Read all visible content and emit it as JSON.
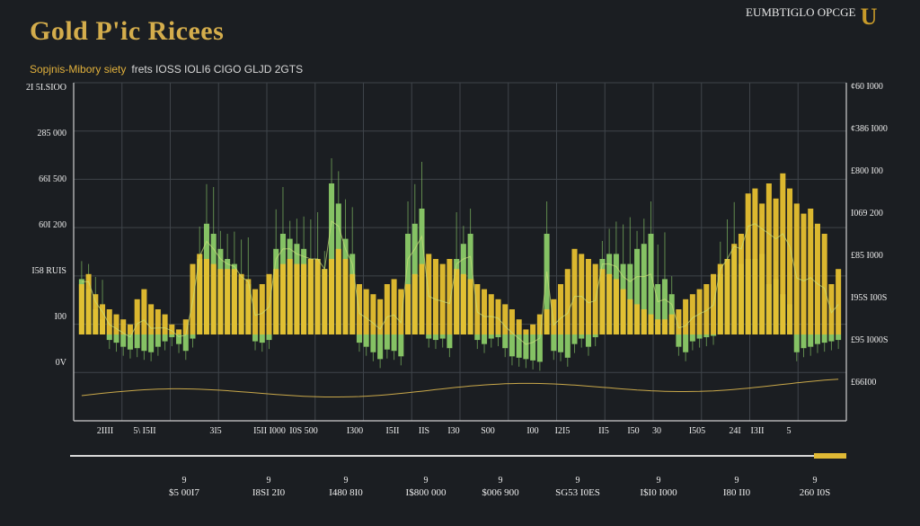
{
  "header": {
    "title": "Gold P'ic Ricees",
    "subtitle_gold": "Sopjnis-Mibory siety",
    "subtitle_rest": "frets IOSS  IOLI6 CIGO GLJD 2GTS",
    "top_right": "EUMBTIGLO OPCGE"
  },
  "colors": {
    "background": "#1b1e22",
    "green": "#8ed06a",
    "yellow": "#e6c030",
    "gold_text": "#d4ad4c",
    "grid": "#3f444a"
  },
  "chart_data": {
    "type": "bar",
    "left_ticks": [
      "2I 5I.SIOO",
      "285 000",
      "66I 500",
      "60I 200",
      "I58 RUIS",
      "I00",
      "0V"
    ],
    "right_ticks": [
      "¢60 I000",
      "¢386 I000",
      "£800 I00",
      "I069 200",
      "£85 I000",
      "I95S I00S",
      "£95 I000S",
      "£66I00"
    ],
    "x_ticks": [
      "2IIII",
      "5\\ I5II",
      "3I5",
      "I5II I000",
      "I0S 500",
      "I300",
      "I5II",
      "IIS",
      "I30",
      "S00",
      "I00",
      "I2I5",
      "II5",
      "I50",
      "30",
      "I505",
      "24I",
      "I3II",
      "5"
    ],
    "bottom_ticks_top": [
      "9",
      "9",
      "9",
      "9",
      "9",
      "9",
      "9",
      "9",
      "9"
    ],
    "bottom_ticks": [
      "$5 00I7",
      "I8SI 2I0",
      "I480 8I0",
      "I$800 000",
      "$006 900",
      "SG53 I0ES",
      "I$I0 I000",
      "I80 II0",
      "260 I0S"
    ],
    "ylim": [
      -100,
      100
    ],
    "series": [
      {
        "name": "",
        "color": "#e6c030",
        "values": [
          20,
          24,
          16,
          12,
          10,
          8,
          6,
          4,
          14,
          18,
          12,
          10,
          8,
          4,
          2,
          6,
          28,
          32,
          30,
          28,
          26,
          26,
          26,
          24,
          22,
          18,
          20,
          24,
          26,
          28,
          30,
          28,
          28,
          30,
          30,
          26,
          30,
          34,
          30,
          24,
          20,
          18,
          16,
          14,
          20,
          22,
          18,
          20,
          24,
          28,
          32,
          30,
          28,
          30,
          26,
          24,
          22,
          20,
          18,
          16,
          14,
          12,
          10,
          6,
          2,
          4,
          8,
          10,
          14,
          20,
          26,
          34,
          32,
          30,
          28,
          26,
          24,
          22,
          18,
          14,
          12,
          10,
          8,
          6,
          6,
          8,
          10,
          14,
          16,
          18,
          20,
          24,
          28,
          30,
          36,
          40,
          56,
          58,
          52,
          60,
          54,
          64,
          58,
          52,
          48,
          50,
          44,
          40,
          20,
          26
        ]
      },
      {
        "name": "",
        "color": "#8ed06a",
        "values": [
          22,
          18,
          10,
          6,
          -8,
          -12,
          -18,
          -22,
          -20,
          -24,
          -26,
          -18,
          -10,
          -4,
          -14,
          -24,
          -6,
          30,
          44,
          40,
          34,
          30,
          28,
          22,
          20,
          -10,
          -12,
          -8,
          34,
          40,
          38,
          36,
          34,
          30,
          30,
          26,
          60,
          52,
          38,
          32,
          -12,
          -18,
          -26,
          -36,
          -22,
          -24,
          -32,
          40,
          44,
          50,
          -6,
          -8,
          -6,
          -20,
          30,
          36,
          40,
          -8,
          -14,
          -6,
          -4,
          -20,
          -32,
          -34,
          -36,
          -38,
          -40,
          40,
          -24,
          -26,
          -34,
          -14,
          -6,
          -18,
          -4,
          30,
          32,
          32,
          28,
          28,
          34,
          36,
          40,
          20,
          22,
          16,
          -18,
          -26,
          -10,
          -6,
          -4,
          -2,
          24,
          30,
          34,
          28,
          30,
          30,
          32,
          20,
          22,
          16,
          12,
          -26,
          -20,
          -18,
          -14,
          -12,
          -10,
          -8
        ]
      }
    ]
  }
}
